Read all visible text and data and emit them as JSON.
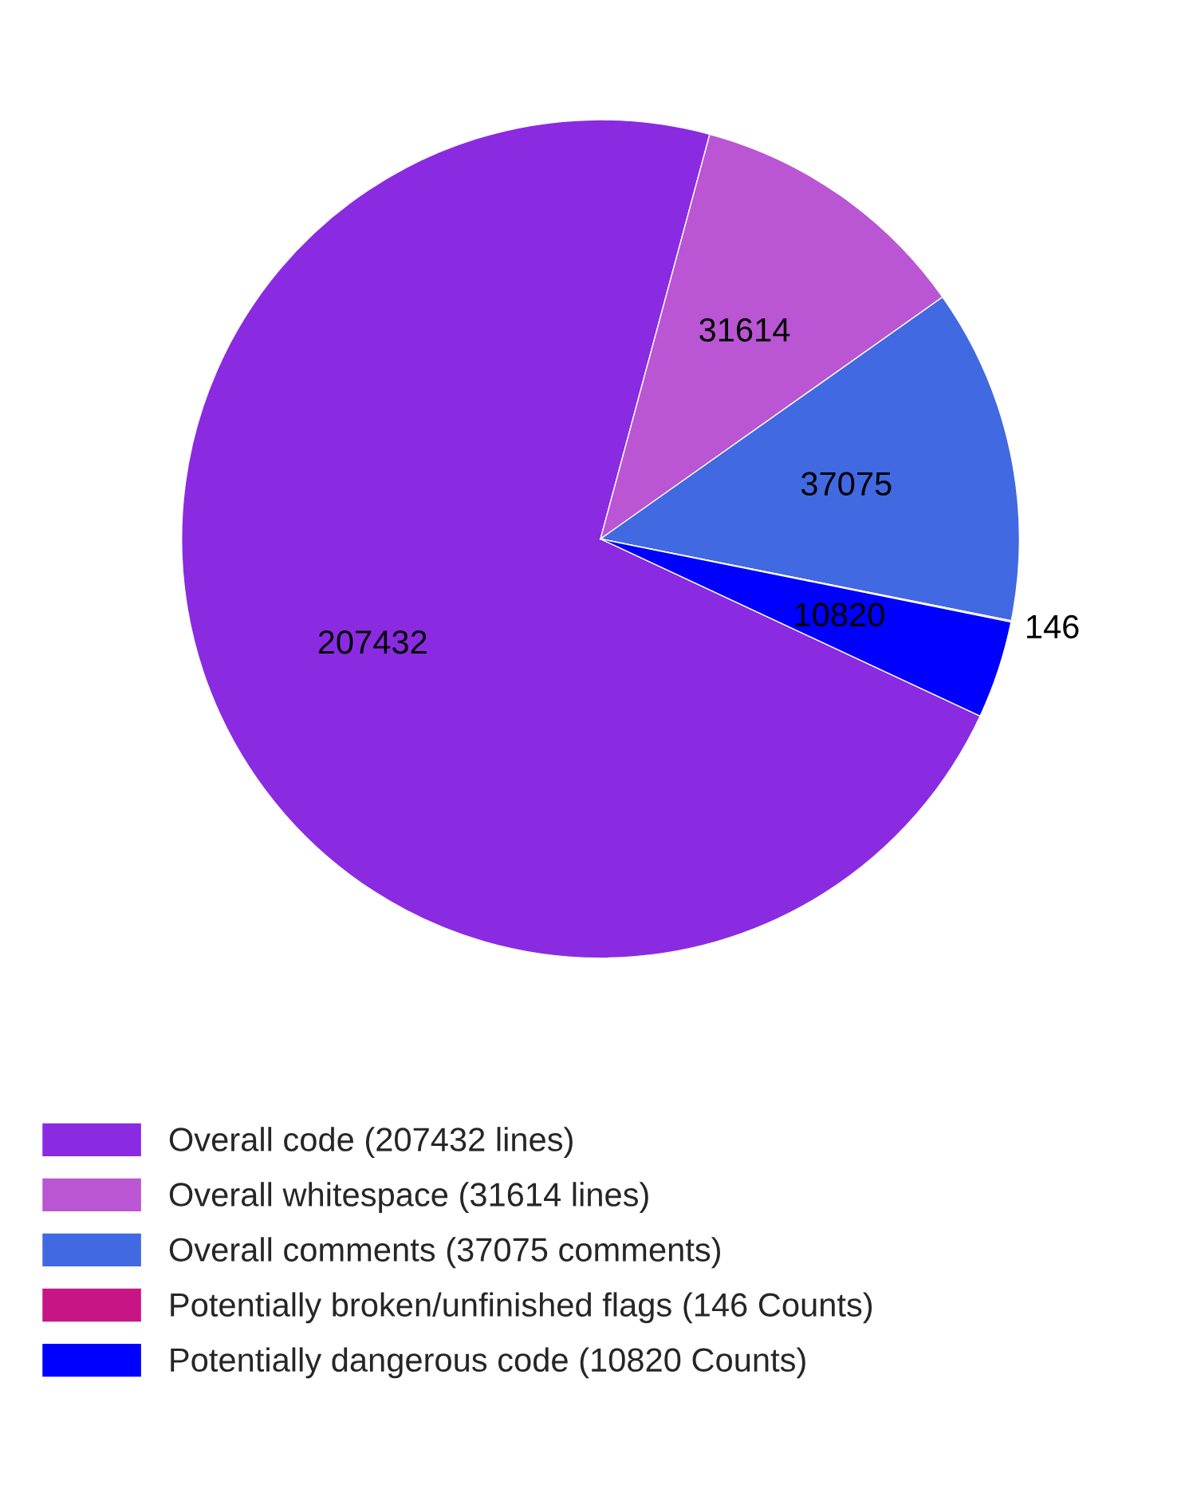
{
  "chart_data": {
    "type": "pie",
    "categories": [
      "Overall code (207432 lines)",
      "Overall whitespace (31614 lines)",
      "Overall comments (37075 comments)",
      "Potentially broken/unfinished flags (146 Counts)",
      "Potentially dangerous code (10820 Counts)"
    ],
    "values": [
      207432,
      31614,
      37075,
      146,
      10820
    ],
    "colors": [
      "#8a2be2",
      "#ba55d3",
      "#4169e1",
      "#c71585",
      "#0000ff"
    ],
    "data_labels": true,
    "legend": "bottom"
  }
}
